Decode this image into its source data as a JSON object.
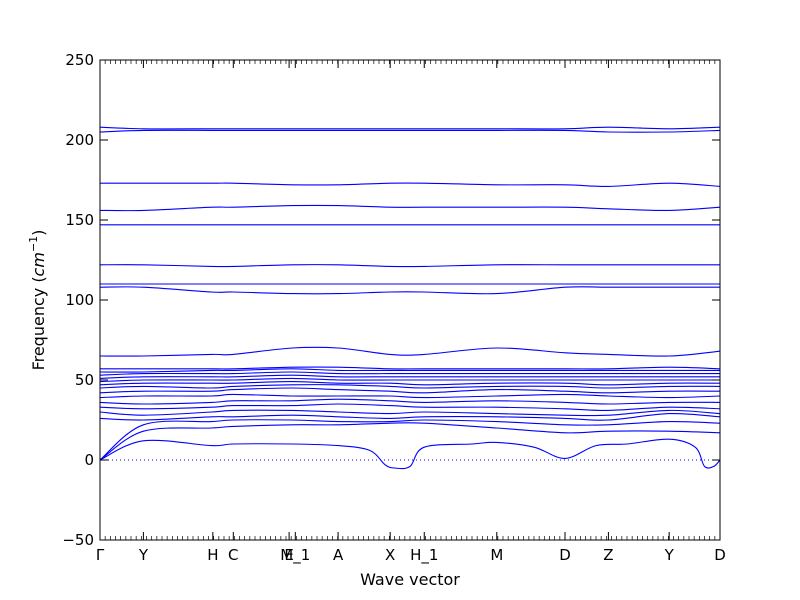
{
  "chart_data": {
    "type": "line",
    "title": "",
    "xlabel": "Wave vector",
    "ylabel": "Frequency",
    "ylabel_unit_base": "cm",
    "ylabel_unit_exp": "−1",
    "ylim": [
      -50,
      250
    ],
    "yticks": [
      -50,
      0,
      50,
      100,
      150,
      200,
      250
    ],
    "xlim": [
      0,
      1
    ],
    "xticks": [
      {
        "pos": 0.0,
        "label": "Γ"
      },
      {
        "pos": 0.07,
        "label": "Y"
      },
      {
        "pos": 0.182,
        "label": "H"
      },
      {
        "pos": 0.215,
        "label": "C"
      },
      {
        "pos": 0.305,
        "label": "E"
      },
      {
        "pos": 0.315,
        "label": "M_1"
      },
      {
        "pos": 0.384,
        "label": "A"
      },
      {
        "pos": 0.468,
        "label": "X"
      },
      {
        "pos": 0.523,
        "label": "H_1"
      },
      {
        "pos": 0.64,
        "label": "M"
      },
      {
        "pos": 0.75,
        "label": "D"
      },
      {
        "pos": 0.82,
        "label": "Z"
      },
      {
        "pos": 0.918,
        "label": "Y"
      },
      {
        "pos": 1.0,
        "label": "D"
      }
    ],
    "zero_line": true,
    "line_color": "#0000ff",
    "series": [
      {
        "x": [
          0,
          0.07,
          0.18,
          0.215,
          0.31,
          0.384,
          0.435,
          0.46,
          0.475,
          0.5,
          0.523,
          0.6,
          0.64,
          0.7,
          0.75,
          0.8,
          0.85,
          0.918,
          0.96,
          0.975,
          0.99,
          1.0
        ],
        "y": [
          0,
          12,
          9,
          10,
          10,
          9,
          6,
          -3,
          -5,
          -4,
          8,
          10,
          11,
          8,
          1,
          9,
          10,
          13,
          8,
          -4,
          -4,
          0
        ]
      },
      {
        "x": [
          0,
          0.07,
          0.18,
          0.215,
          0.31,
          0.384,
          0.468,
          0.523,
          0.64,
          0.75,
          0.82,
          0.918,
          1.0
        ],
        "y": [
          0,
          18,
          20,
          21,
          22,
          22,
          23,
          23,
          20,
          17,
          18,
          18,
          17
        ]
      },
      {
        "x": [
          0,
          0.07,
          0.18,
          0.215,
          0.31,
          0.384,
          0.468,
          0.523,
          0.64,
          0.75,
          0.82,
          0.918,
          1.0
        ],
        "y": [
          0,
          22,
          24,
          25,
          25,
          24,
          24,
          25,
          24,
          22,
          22,
          24,
          23
        ]
      },
      {
        "x": [
          0,
          0.07,
          0.18,
          0.215,
          0.31,
          0.384,
          0.468,
          0.523,
          0.64,
          0.75,
          0.82,
          0.918,
          1.0
        ],
        "y": [
          26,
          25,
          27,
          27,
          28,
          27,
          26,
          27,
          27,
          26,
          25,
          29,
          27
        ]
      },
      {
        "x": [
          0,
          0.07,
          0.18,
          0.215,
          0.31,
          0.384,
          0.468,
          0.523,
          0.64,
          0.75,
          0.82,
          0.918,
          1.0
        ],
        "y": [
          30,
          28,
          30,
          31,
          31,
          30,
          29,
          30,
          29,
          28,
          28,
          31,
          29
        ]
      },
      {
        "x": [
          0,
          0.07,
          0.18,
          0.215,
          0.31,
          0.384,
          0.468,
          0.523,
          0.64,
          0.75,
          0.82,
          0.918,
          1.0
        ],
        "y": [
          33,
          32,
          33,
          34,
          34,
          35,
          34,
          33,
          33,
          32,
          31,
          33,
          32
        ]
      },
      {
        "x": [
          0,
          0.07,
          0.18,
          0.215,
          0.31,
          0.384,
          0.468,
          0.523,
          0.64,
          0.75,
          0.82,
          0.918,
          1.0
        ],
        "y": [
          36,
          35,
          36,
          37,
          37,
          38,
          37,
          36,
          37,
          36,
          35,
          36,
          36
        ]
      },
      {
        "x": [
          0,
          0.07,
          0.18,
          0.215,
          0.31,
          0.384,
          0.468,
          0.523,
          0.64,
          0.75,
          0.82,
          0.918,
          1.0
        ],
        "y": [
          39,
          40,
          40,
          41,
          40,
          40,
          40,
          39,
          40,
          41,
          40,
          39,
          40
        ]
      },
      {
        "x": [
          0,
          0.07,
          0.18,
          0.215,
          0.31,
          0.384,
          0.468,
          0.523,
          0.64,
          0.75,
          0.82,
          0.918,
          1.0
        ],
        "y": [
          42,
          43,
          43,
          44,
          45,
          44,
          43,
          42,
          44,
          43,
          42,
          43,
          43
        ]
      },
      {
        "x": [
          0,
          0.07,
          0.18,
          0.215,
          0.31,
          0.384,
          0.468,
          0.523,
          0.64,
          0.75,
          0.82,
          0.918,
          1.0
        ],
        "y": [
          45,
          46,
          45,
          46,
          47,
          47,
          46,
          45,
          46,
          46,
          45,
          46,
          46
        ]
      },
      {
        "x": [
          0,
          0.07,
          0.18,
          0.215,
          0.31,
          0.384,
          0.468,
          0.523,
          0.64,
          0.75,
          0.82,
          0.918,
          1.0
        ],
        "y": [
          47,
          48,
          48,
          48,
          49,
          48,
          48,
          47,
          48,
          48,
          47,
          48,
          48
        ]
      },
      {
        "x": [
          0,
          0.07,
          0.18,
          0.215,
          0.31,
          0.384,
          0.468,
          0.523,
          0.64,
          0.75,
          0.82,
          0.918,
          1.0
        ],
        "y": [
          49,
          50,
          50,
          50,
          51,
          50,
          50,
          50,
          50,
          50,
          50,
          50,
          50
        ]
      },
      {
        "x": [
          0,
          0.07,
          0.18,
          0.215,
          0.31,
          0.384,
          0.468,
          0.523,
          0.64,
          0.75,
          0.82,
          0.918,
          1.0
        ],
        "y": [
          51,
          52,
          52,
          52,
          53,
          52,
          52,
          52,
          52,
          52,
          52,
          52,
          52
        ]
      },
      {
        "x": [
          0,
          0.07,
          0.18,
          0.215,
          0.31,
          0.384,
          0.468,
          0.523,
          0.64,
          0.75,
          0.82,
          0.918,
          1.0
        ],
        "y": [
          53,
          54,
          54,
          54,
          55,
          54,
          54,
          54,
          54,
          54,
          54,
          54,
          54
        ]
      },
      {
        "x": [
          0,
          0.07,
          0.18,
          0.215,
          0.31,
          0.384,
          0.468,
          0.523,
          0.64,
          0.75,
          0.82,
          0.918,
          1.0
        ],
        "y": [
          55,
          55,
          56,
          56,
          57,
          56,
          56,
          56,
          56,
          56,
          56,
          56,
          56
        ]
      },
      {
        "x": [
          0,
          0.07,
          0.18,
          0.215,
          0.31,
          0.384,
          0.468,
          0.523,
          0.64,
          0.75,
          0.82,
          0.918,
          1.0
        ],
        "y": [
          57,
          57,
          57,
          57,
          58,
          58,
          57,
          57,
          57,
          57,
          57,
          58,
          57
        ]
      },
      {
        "x": [
          0,
          0.07,
          0.18,
          0.215,
          0.31,
          0.384,
          0.468,
          0.523,
          0.64,
          0.75,
          0.82,
          0.918,
          1.0
        ],
        "y": [
          65,
          65,
          66,
          66,
          70,
          70,
          66,
          66,
          70,
          67,
          66,
          65,
          68
        ]
      },
      {
        "x": [
          0,
          0.07,
          0.18,
          0.215,
          0.31,
          0.384,
          0.468,
          0.523,
          0.64,
          0.75,
          0.82,
          0.918,
          1.0
        ],
        "y": [
          108,
          108,
          105,
          105,
          104,
          104,
          105,
          105,
          104,
          108,
          108,
          108,
          108
        ]
      },
      {
        "x": [
          0,
          0.07,
          0.18,
          0.215,
          0.31,
          0.384,
          0.468,
          0.523,
          0.64,
          0.75,
          0.82,
          0.918,
          1.0
        ],
        "y": [
          110,
          110,
          110,
          110,
          110,
          110,
          110,
          110,
          110,
          110,
          110,
          110,
          110
        ]
      },
      {
        "x": [
          0,
          0.07,
          0.18,
          0.215,
          0.31,
          0.384,
          0.468,
          0.523,
          0.64,
          0.75,
          0.82,
          0.918,
          1.0
        ],
        "y": [
          122,
          122,
          121,
          121,
          122,
          122,
          121,
          121,
          122,
          122,
          122,
          122,
          122
        ]
      },
      {
        "x": [
          0,
          0.07,
          0.18,
          0.215,
          0.31,
          0.384,
          0.468,
          0.523,
          0.64,
          0.75,
          0.82,
          0.918,
          1.0
        ],
        "y": [
          147,
          147,
          147,
          147,
          147,
          147,
          147,
          147,
          147,
          147,
          147,
          147,
          147
        ]
      },
      {
        "x": [
          0,
          0.07,
          0.18,
          0.215,
          0.31,
          0.384,
          0.468,
          0.523,
          0.64,
          0.75,
          0.82,
          0.918,
          1.0
        ],
        "y": [
          156,
          156,
          158,
          158,
          159,
          159,
          158,
          158,
          158,
          158,
          157,
          156,
          158
        ]
      },
      {
        "x": [
          0,
          0.07,
          0.18,
          0.215,
          0.31,
          0.384,
          0.468,
          0.523,
          0.64,
          0.75,
          0.82,
          0.918,
          1.0
        ],
        "y": [
          173,
          173,
          173,
          173,
          172,
          172,
          173,
          173,
          172,
          172,
          171,
          173,
          171
        ]
      },
      {
        "x": [
          0,
          0.07,
          0.18,
          0.215,
          0.31,
          0.384,
          0.468,
          0.523,
          0.64,
          0.75,
          0.82,
          0.918,
          1.0
        ],
        "y": [
          205,
          206,
          206,
          206,
          206,
          206,
          206,
          206,
          206,
          206,
          205,
          205,
          206
        ]
      },
      {
        "x": [
          0,
          0.07,
          0.18,
          0.215,
          0.31,
          0.384,
          0.468,
          0.523,
          0.64,
          0.75,
          0.82,
          0.918,
          1.0
        ],
        "y": [
          208,
          207,
          207,
          207,
          207,
          207,
          207,
          207,
          207,
          207,
          208,
          207,
          208
        ]
      }
    ]
  }
}
